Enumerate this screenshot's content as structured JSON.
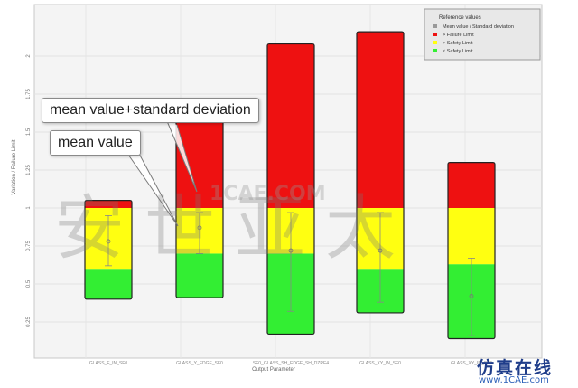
{
  "chart_data": {
    "type": "bar",
    "subtype": "stacked-range",
    "title": "",
    "xlabel": "Output Parameter",
    "ylabel": "Variation / Failure Limit",
    "ylim": [
      0.15,
      2.2
    ],
    "yticks": [
      "0.25",
      "0.5",
      "0.75",
      "1",
      "1.25",
      "1.5",
      "1.75",
      "2"
    ],
    "grid": true,
    "categories": [
      "GLASS_F_IN_SF0",
      "GLASS_Y_EDGE_SF0",
      "SF0_GLASS_SH_EDGE_SH_DZRE4",
      "GLASS_XY_IN_SF0",
      "GLASS_XY_IN_SF0"
    ],
    "series": [
      {
        "name": "< Safety Limit",
        "color": "#33ee33",
        "values": [
          {
            "from": 0.4,
            "to": 0.6
          },
          {
            "from": 0.41,
            "to": 0.7
          },
          {
            "from": 0.17,
            "to": 0.7
          },
          {
            "from": 0.31,
            "to": 0.6
          },
          {
            "from": 0.14,
            "to": 0.63
          }
        ]
      },
      {
        "name": "> Safety Limit",
        "color": "#ffff11",
        "values": [
          {
            "from": 0.6,
            "to": 1.0
          },
          {
            "from": 0.7,
            "to": 1.0
          },
          {
            "from": 0.7,
            "to": 1.0
          },
          {
            "from": 0.6,
            "to": 1.0
          },
          {
            "from": 0.63,
            "to": 1.0
          }
        ]
      },
      {
        "name": "> Failure Limit",
        "color": "#ee1111",
        "values": [
          {
            "from": 1.0,
            "to": 1.05
          },
          {
            "from": 1.0,
            "to": 1.67
          },
          {
            "from": 1.0,
            "to": 2.08
          },
          {
            "from": 1.0,
            "to": 2.16
          },
          {
            "from": 1.0,
            "to": 1.3
          }
        ]
      }
    ],
    "mean_values": [
      0.78,
      0.87,
      0.72,
      0.72,
      0.42
    ],
    "std_upper": [
      0.95,
      0.97,
      0.97,
      0.97,
      0.67
    ],
    "std_lower": [
      0.62,
      0.7,
      0.32,
      0.38,
      0.16
    ],
    "annotations": [
      "mean value+standard deviation",
      "mean value"
    ],
    "legend": {
      "title": "Reference values",
      "position": "top-right",
      "entries": [
        {
          "label": "Mean value / Standard deviation",
          "color": "#999999"
        },
        {
          "label": ">  Failure Limit",
          "color": "#ee1111"
        },
        {
          "label": ">  Safety Limit",
          "color": "#ffff11"
        },
        {
          "label": "<  Safety Limit",
          "color": "#33ee33"
        }
      ]
    }
  },
  "callouts": {
    "std": "mean value+standard deviation",
    "mean": "mean value"
  },
  "watermark": {
    "cjk": "安世亚太",
    "domain": "1CAE.COM",
    "brand_cn": "仿真在线",
    "brand_url": "www.1CAE.com"
  }
}
